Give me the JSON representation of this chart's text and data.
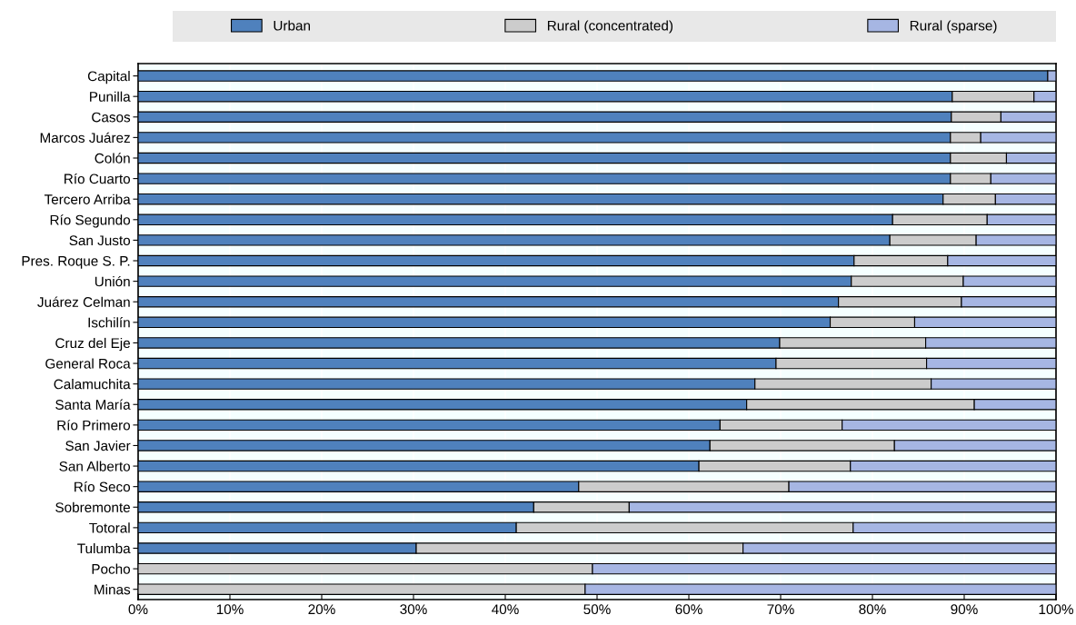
{
  "chart_data": {
    "type": "bar",
    "orientation": "horizontal",
    "stacked": true,
    "legend": "top",
    "grid": "x",
    "categories": [
      "Capital",
      "Punilla",
      "Casos",
      "Marcos Juárez",
      "Colón",
      "Río Cuarto",
      "Tercero Arriba",
      "Río Segundo",
      "San Justo",
      "Pres. Roque S. P.",
      "Unión",
      "Juárez Celman",
      "Ischilín",
      "Cruz del Eje",
      "General Roca",
      "Calamuchita",
      "Santa María",
      "Río Primero",
      "San Javier",
      "San Alberto",
      "Río Seco",
      "Sobremonte",
      "Totoral",
      "Tulumba",
      "Pocho",
      "Minas"
    ],
    "series": [
      {
        "name": "Urban",
        "color": "#4f81bd",
        "values": [
          99.1,
          88.7,
          88.6,
          88.5,
          88.5,
          88.5,
          87.7,
          82.2,
          81.9,
          78.0,
          77.7,
          76.3,
          75.4,
          69.9,
          69.5,
          67.2,
          66.3,
          63.4,
          62.3,
          61.1,
          48.0,
          43.1,
          41.2,
          30.3,
          null,
          null
        ]
      },
      {
        "name": "Rural (concentrated)",
        "color": "#cccccc",
        "values": [
          null,
          8.9,
          5.4,
          3.3,
          6.1,
          4.4,
          5.7,
          10.3,
          9.4,
          10.2,
          12.2,
          13.4,
          9.2,
          15.9,
          16.4,
          19.2,
          24.8,
          13.3,
          20.1,
          16.5,
          22.9,
          10.4,
          36.7,
          35.6,
          49.5,
          48.7
        ]
      },
      {
        "name": "Rural (sparse)",
        "color": "#a6b6e3",
        "values": [
          0.9,
          2.4,
          6.0,
          8.2,
          5.4,
          7.1,
          6.6,
          7.5,
          8.7,
          11.8,
          10.1,
          10.3,
          15.4,
          14.2,
          14.1,
          13.6,
          8.9,
          23.3,
          17.6,
          22.4,
          29.1,
          46.5,
          22.1,
          34.1,
          50.5,
          51.3
        ]
      }
    ],
    "xlim": [
      0,
      100
    ],
    "xticks": [
      {
        "value": 0,
        "label": "0%"
      },
      {
        "value": 10,
        "label": "10%"
      },
      {
        "value": 20,
        "label": "20%"
      },
      {
        "value": 30,
        "label": "30%"
      },
      {
        "value": 40,
        "label": "40%"
      },
      {
        "value": 50,
        "label": "50%"
      },
      {
        "value": 60,
        "label": "60%"
      },
      {
        "value": 70,
        "label": "70%"
      },
      {
        "value": 80,
        "label": "80%"
      },
      {
        "value": 90,
        "label": "90%"
      },
      {
        "value": 100,
        "label": "100%"
      }
    ]
  }
}
